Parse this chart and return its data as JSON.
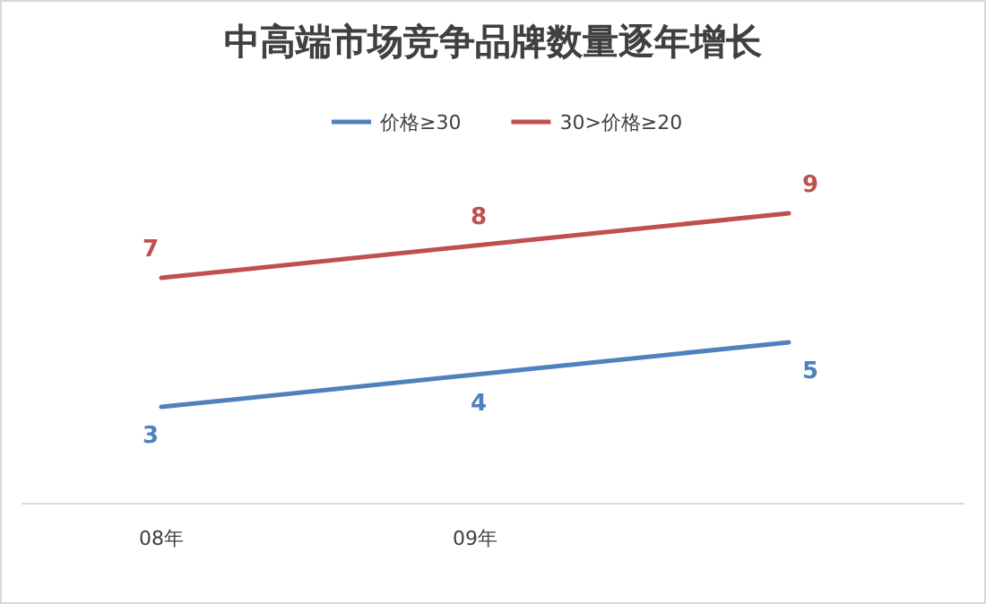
{
  "chart_data": {
    "type": "line",
    "title": "中高端市场竞争品牌数量逐年增长",
    "categories": [
      "08年",
      "09年",
      null
    ],
    "legend": "top",
    "data_labels": true,
    "marker": "none",
    "line_style": "solid",
    "series": [
      {
        "name": "价格≥30",
        "color": "#4f81bd",
        "values": [
          3,
          4,
          5
        ]
      },
      {
        "name": "30>价格≥20",
        "color": "#c0504d",
        "values": [
          7,
          8,
          9
        ]
      }
    ]
  }
}
